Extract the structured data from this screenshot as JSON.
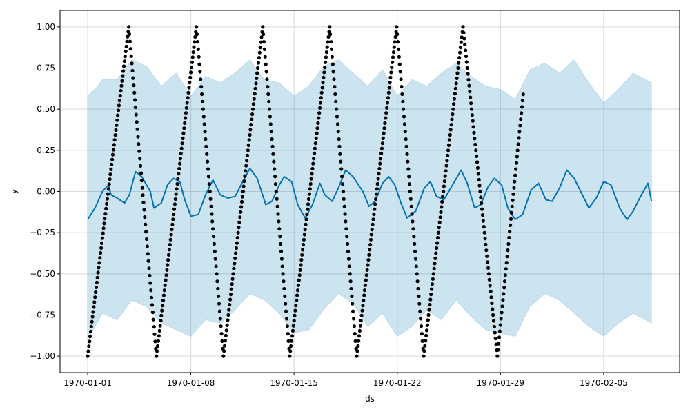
{
  "chart_data": {
    "type": "line",
    "xlabel": "ds",
    "ylabel": "y",
    "grid": true,
    "x_range": [
      "1970-01-01",
      "1970-02-08"
    ],
    "ylim": [
      -1.1,
      1.1
    ],
    "x_ticks": [
      {
        "label": "1970-01-01",
        "date": "1970-01-01"
      },
      {
        "label": "1970-01-08",
        "date": "1970-01-08"
      },
      {
        "label": "1970-01-15",
        "date": "1970-01-15"
      },
      {
        "label": "1970-01-22",
        "date": "1970-01-22"
      },
      {
        "label": "1970-01-29",
        "date": "1970-01-29"
      },
      {
        "label": "1970-02-05",
        "date": "1970-02-05"
      }
    ],
    "y_ticks": [
      {
        "label": "1.00",
        "value": 1.0
      },
      {
        "label": "0.75",
        "value": 0.75
      },
      {
        "label": "0.50",
        "value": 0.5
      },
      {
        "label": "0.25",
        "value": 0.25
      },
      {
        "label": "0.00",
        "value": 0.0
      },
      {
        "label": "−0.25",
        "value": -0.25
      },
      {
        "label": "−0.50",
        "value": -0.5
      },
      {
        "label": "−0.75",
        "value": -0.75
      },
      {
        "label": "−1.00",
        "value": -1.0
      }
    ],
    "series": [
      {
        "role": "observed",
        "render": "points",
        "color": "#000000",
        "points": [
          [
            "1970-01-01",
            -1.0
          ],
          [
            "1970-01-03 19:00",
            1.0
          ],
          [
            "1970-01-05 16:00",
            -1.0
          ],
          [
            "1970-01-08 09:00",
            1.0
          ],
          [
            "1970-01-10 05:00",
            -1.0
          ],
          [
            "1970-01-12 21:00",
            1.0
          ],
          [
            "1970-01-14 17:00",
            -1.0
          ],
          [
            "1970-01-17 10:00",
            1.0
          ],
          [
            "1970-01-19 06:00",
            -1.0
          ],
          [
            "1970-01-21 23:00",
            1.0
          ],
          [
            "1970-01-23 19:00",
            -1.0
          ],
          [
            "1970-01-26 11:00",
            1.0
          ],
          [
            "1970-01-28 19:00",
            -1.0
          ],
          [
            "1970-01-30 13:00",
            0.59
          ]
        ]
      },
      {
        "role": "forecast",
        "render": "line",
        "color": "#0072B2",
        "points": [
          [
            "1970-01-01",
            -0.17
          ],
          [
            "1970-01-01 12:00",
            -0.1
          ],
          [
            "1970-01-02",
            0.0
          ],
          [
            "1970-01-02 10:00",
            0.04
          ],
          [
            "1970-01-02 14:00",
            -0.02
          ],
          [
            "1970-01-03",
            -0.04
          ],
          [
            "1970-01-03 12:00",
            -0.07
          ],
          [
            "1970-01-03 20:00",
            -0.02
          ],
          [
            "1970-01-04 06:00",
            0.12
          ],
          [
            "1970-01-04 16:00",
            0.09
          ],
          [
            "1970-01-05 06:00",
            0.0
          ],
          [
            "1970-01-05 12:00",
            -0.1
          ],
          [
            "1970-01-06",
            -0.07
          ],
          [
            "1970-01-06 10:00",
            0.04
          ],
          [
            "1970-01-06 20:00",
            0.08
          ],
          [
            "1970-01-07 06:00",
            0.06
          ],
          [
            "1970-01-07 14:00",
            -0.05
          ],
          [
            "1970-01-08",
            -0.15
          ],
          [
            "1970-01-08 12:00",
            -0.14
          ],
          [
            "1970-01-09",
            -0.02
          ],
          [
            "1970-01-09 12:00",
            0.07
          ],
          [
            "1970-01-10",
            -0.02
          ],
          [
            "1970-01-10 12:00",
            -0.04
          ],
          [
            "1970-01-11",
            -0.03
          ],
          [
            "1970-01-11 14:00",
            0.07
          ],
          [
            "1970-01-12",
            0.14
          ],
          [
            "1970-01-12 12:00",
            0.08
          ],
          [
            "1970-01-13 02:00",
            -0.08
          ],
          [
            "1970-01-13 12:00",
            -0.06
          ],
          [
            "1970-01-14",
            0.04
          ],
          [
            "1970-01-14 08:00",
            0.09
          ],
          [
            "1970-01-14 20:00",
            0.06
          ],
          [
            "1970-01-15 06:00",
            -0.08
          ],
          [
            "1970-01-15 18:00",
            -0.16
          ],
          [
            "1970-01-16 06:00",
            -0.08
          ],
          [
            "1970-01-16 18:00",
            0.05
          ],
          [
            "1970-01-17 02:00",
            -0.02
          ],
          [
            "1970-01-17 14:00",
            -0.06
          ],
          [
            "1970-01-18",
            0.02
          ],
          [
            "1970-01-18 12:00",
            0.13
          ],
          [
            "1970-01-19",
            0.09
          ],
          [
            "1970-01-19 16:00",
            0.0
          ],
          [
            "1970-01-20 02:00",
            -0.09
          ],
          [
            "1970-01-20 12:00",
            -0.06
          ],
          [
            "1970-01-21",
            0.05
          ],
          [
            "1970-01-21 10:00",
            0.09
          ],
          [
            "1970-01-21 20:00",
            0.04
          ],
          [
            "1970-01-22 06:00",
            -0.07
          ],
          [
            "1970-01-22 16:00",
            -0.16
          ],
          [
            "1970-01-23 06:00",
            -0.12
          ],
          [
            "1970-01-23 20:00",
            0.02
          ],
          [
            "1970-01-24 06:00",
            0.06
          ],
          [
            "1970-01-24 16:00",
            -0.03
          ],
          [
            "1970-01-25 04:00",
            -0.05
          ],
          [
            "1970-01-25 18:00",
            0.04
          ],
          [
            "1970-01-26 08:00",
            0.13
          ],
          [
            "1970-01-26 18:00",
            0.05
          ],
          [
            "1970-01-27 06:00",
            -0.1
          ],
          [
            "1970-01-27 16:00",
            -0.08
          ],
          [
            "1970-01-28 04:00",
            0.03
          ],
          [
            "1970-01-28 14:00",
            0.08
          ],
          [
            "1970-01-29 02:00",
            0.04
          ],
          [
            "1970-01-29 12:00",
            -0.1
          ],
          [
            "1970-01-30",
            -0.17
          ],
          [
            "1970-01-30 12:00",
            -0.14
          ],
          [
            "1970-01-31 02:00",
            0.01
          ],
          [
            "1970-01-31 14:00",
            0.05
          ],
          [
            "1970-02-01 02:00",
            -0.05
          ],
          [
            "1970-02-01 12:00",
            -0.06
          ],
          [
            "1970-02-02",
            0.02
          ],
          [
            "1970-02-02 12:00",
            0.13
          ],
          [
            "1970-02-03",
            0.08
          ],
          [
            "1970-02-03 12:00",
            -0.01
          ],
          [
            "1970-02-04",
            -0.1
          ],
          [
            "1970-02-04 12:00",
            -0.04
          ],
          [
            "1970-02-05",
            0.06
          ],
          [
            "1970-02-05 12:00",
            0.04
          ],
          [
            "1970-02-06 02:00",
            -0.1
          ],
          [
            "1970-02-06 14:00",
            -0.17
          ],
          [
            "1970-02-07",
            -0.12
          ],
          [
            "1970-02-07 12:00",
            -0.03
          ],
          [
            "1970-02-08",
            0.05
          ],
          [
            "1970-02-08 06:00",
            -0.06
          ]
        ]
      },
      {
        "role": "uncertainty_band",
        "render": "band",
        "color": "#0072B2",
        "opacity": 0.2,
        "upper": [
          [
            "1970-01-01",
            0.58
          ],
          [
            "1970-01-01 12:00",
            0.62
          ],
          [
            "1970-01-02",
            0.68
          ],
          [
            "1970-01-03",
            0.68
          ],
          [
            "1970-01-04",
            0.8
          ],
          [
            "1970-01-05",
            0.76
          ],
          [
            "1970-01-06",
            0.64
          ],
          [
            "1970-01-07",
            0.72
          ],
          [
            "1970-01-08",
            0.58
          ],
          [
            "1970-01-09",
            0.7
          ],
          [
            "1970-01-10",
            0.66
          ],
          [
            "1970-01-11",
            0.72
          ],
          [
            "1970-01-12",
            0.8
          ],
          [
            "1970-01-13",
            0.68
          ],
          [
            "1970-01-14",
            0.66
          ],
          [
            "1970-01-15",
            0.58
          ],
          [
            "1970-01-16",
            0.64
          ],
          [
            "1970-01-17",
            0.76
          ],
          [
            "1970-01-18",
            0.8
          ],
          [
            "1970-01-19",
            0.72
          ],
          [
            "1970-01-20",
            0.64
          ],
          [
            "1970-01-21",
            0.74
          ],
          [
            "1970-01-22",
            0.58
          ],
          [
            "1970-01-23",
            0.68
          ],
          [
            "1970-01-24",
            0.64
          ],
          [
            "1970-01-25",
            0.72
          ],
          [
            "1970-01-26",
            0.78
          ],
          [
            "1970-01-27",
            0.7
          ],
          [
            "1970-01-28",
            0.64
          ],
          [
            "1970-01-29",
            0.62
          ],
          [
            "1970-01-30",
            0.56
          ],
          [
            "1970-01-31",
            0.74
          ],
          [
            "1970-02-01",
            0.78
          ],
          [
            "1970-02-02",
            0.72
          ],
          [
            "1970-02-03",
            0.8
          ],
          [
            "1970-02-04",
            0.66
          ],
          [
            "1970-02-05",
            0.54
          ],
          [
            "1970-02-06",
            0.62
          ],
          [
            "1970-02-07",
            0.72
          ],
          [
            "1970-02-08 06:00",
            0.66
          ]
        ],
        "lower": [
          [
            "1970-01-01",
            -0.9
          ],
          [
            "1970-01-01 12:00",
            -0.82
          ],
          [
            "1970-01-02",
            -0.74
          ],
          [
            "1970-01-03",
            -0.78
          ],
          [
            "1970-01-04",
            -0.66
          ],
          [
            "1970-01-05",
            -0.7
          ],
          [
            "1970-01-06",
            -0.8
          ],
          [
            "1970-01-07",
            -0.84
          ],
          [
            "1970-01-08",
            -0.88
          ],
          [
            "1970-01-09",
            -0.78
          ],
          [
            "1970-01-10",
            -0.8
          ],
          [
            "1970-01-11",
            -0.72
          ],
          [
            "1970-01-12",
            -0.62
          ],
          [
            "1970-01-13",
            -0.66
          ],
          [
            "1970-01-14",
            -0.74
          ],
          [
            "1970-01-15",
            -0.86
          ],
          [
            "1970-01-16",
            -0.84
          ],
          [
            "1970-01-17",
            -0.72
          ],
          [
            "1970-01-18",
            -0.62
          ],
          [
            "1970-01-19",
            -0.68
          ],
          [
            "1970-01-20",
            -0.82
          ],
          [
            "1970-01-21",
            -0.74
          ],
          [
            "1970-01-22",
            -0.88
          ],
          [
            "1970-01-23",
            -0.82
          ],
          [
            "1970-01-24",
            -0.72
          ],
          [
            "1970-01-25",
            -0.78
          ],
          [
            "1970-01-26",
            -0.66
          ],
          [
            "1970-01-27",
            -0.76
          ],
          [
            "1970-01-28",
            -0.84
          ],
          [
            "1970-01-29",
            -0.86
          ],
          [
            "1970-01-30",
            -0.88
          ],
          [
            "1970-01-31",
            -0.7
          ],
          [
            "1970-02-01",
            -0.62
          ],
          [
            "1970-02-02",
            -0.66
          ],
          [
            "1970-02-03",
            -0.74
          ],
          [
            "1970-02-04",
            -0.82
          ],
          [
            "1970-02-05",
            -0.88
          ],
          [
            "1970-02-06",
            -0.8
          ],
          [
            "1970-02-07",
            -0.74
          ],
          [
            "1970-02-08 06:00",
            -0.8
          ]
        ]
      }
    ]
  }
}
